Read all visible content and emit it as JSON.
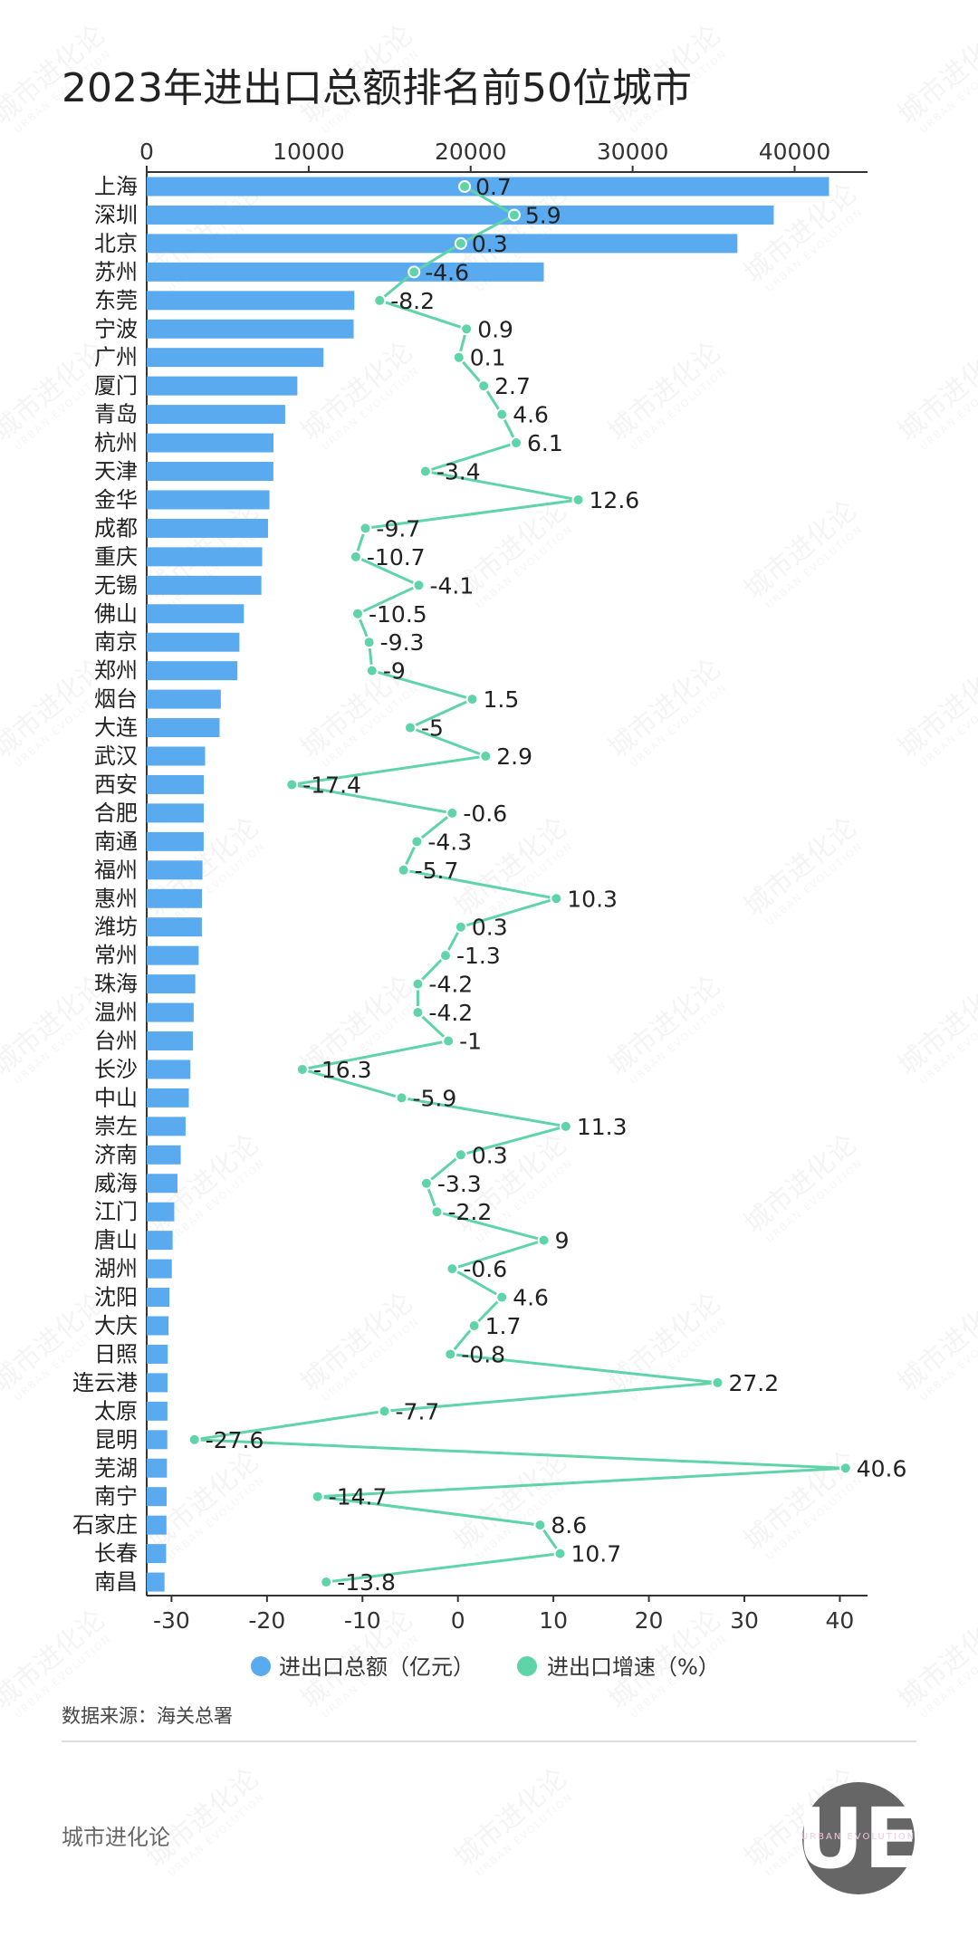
{
  "title": "2023年进出口总额排名前50位城市",
  "legend": {
    "bar_label": "进出口总额（亿元）",
    "line_label": "进出口增速（%）"
  },
  "colors": {
    "bar": "#5aaaf0",
    "line": "#5fd4a8",
    "axis": "#333333",
    "logo_bg": "#666666",
    "logo_text": "#ffffff"
  },
  "source": "数据来源：海关总署",
  "footer": "城市进化论",
  "watermark": {
    "main": "城市进化论",
    "sub": "URBAN EVOLUTION"
  },
  "logo": {
    "letters": "UE",
    "sub": "URBAN EVOLUTION"
  },
  "chart_data": {
    "type": "bar+line",
    "categories": [
      "上海",
      "深圳",
      "北京",
      "苏州",
      "东莞",
      "宁波",
      "广州",
      "厦门",
      "青岛",
      "杭州",
      "天津",
      "金华",
      "成都",
      "重庆",
      "无锡",
      "佛山",
      "南京",
      "郑州",
      "烟台",
      "大连",
      "武汉",
      "西安",
      "合肥",
      "南通",
      "福州",
      "惠州",
      "潍坊",
      "常州",
      "珠海",
      "温州",
      "台州",
      "长沙",
      "中山",
      "崇左",
      "济南",
      "威海",
      "江门",
      "唐山",
      "湖州",
      "沈阳",
      "大庆",
      "日照",
      "连云港",
      "太原",
      "昆明",
      "芜湖",
      "南宁",
      "石家庄",
      "长春",
      "南昌"
    ],
    "series": [
      {
        "name": "进出口总额（亿元）",
        "type": "bar",
        "axis": "top",
        "values": [
          42121,
          38711,
          36466,
          24514,
          12821,
          12777,
          10915,
          9300,
          8549,
          7828,
          7819,
          7580,
          7489,
          7128,
          7079,
          5998,
          5725,
          5601,
          4575,
          4500,
          3606,
          3532,
          3525,
          3518,
          3443,
          3410,
          3406,
          3206,
          3000,
          2900,
          2850,
          2700,
          2600,
          2400,
          2100,
          1900,
          1700,
          1600,
          1550,
          1400,
          1350,
          1300,
          1290,
          1280,
          1270,
          1250,
          1230,
          1220,
          1200,
          1100
        ]
      },
      {
        "name": "进出口增速（%）",
        "type": "line",
        "axis": "bottom",
        "values": [
          0.7,
          5.9,
          0.3,
          -4.6,
          -8.2,
          0.9,
          0.1,
          2.7,
          4.6,
          6.1,
          -3.4,
          12.6,
          -9.7,
          -10.7,
          -4.1,
          -10.5,
          -9.3,
          -9,
          1.5,
          -5,
          2.9,
          -17.4,
          -0.6,
          -4.3,
          -5.7,
          10.3,
          0.3,
          -1.3,
          -4.2,
          -4.2,
          -1,
          -16.3,
          -5.9,
          11.3,
          0.3,
          -3.3,
          -2.2,
          9,
          -0.6,
          4.6,
          1.7,
          -0.8,
          27.2,
          -7.7,
          -27.6,
          40.6,
          -14.7,
          8.6,
          10.7,
          -13.8
        ]
      }
    ],
    "top_axis": {
      "min": 0,
      "max": 44500,
      "ticks": [
        0,
        10000,
        20000,
        30000,
        40000
      ]
    },
    "bottom_axis": {
      "min": -32.6,
      "max": 42.9,
      "ticks": [
        -30,
        -20,
        -10,
        0,
        10,
        20,
        30,
        40
      ]
    }
  }
}
